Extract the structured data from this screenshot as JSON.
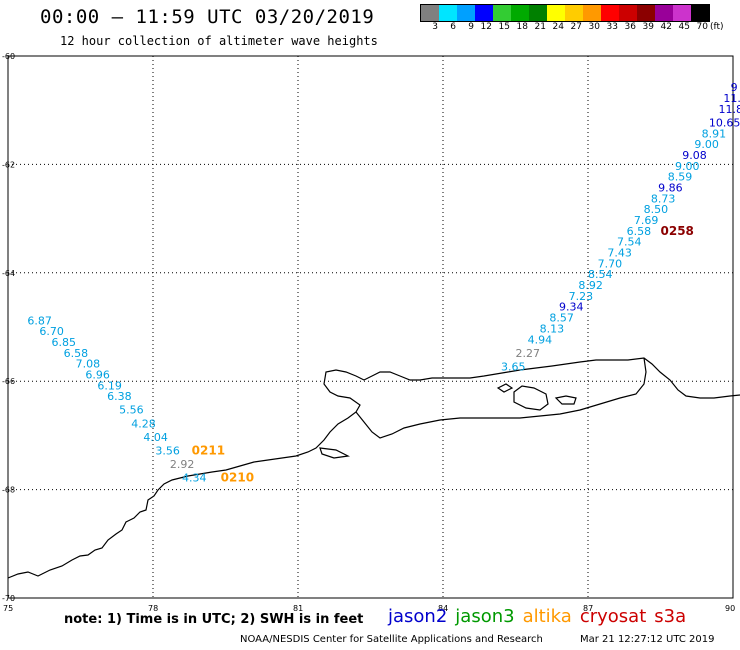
{
  "header": {
    "title": "00:00 – 11:59 UTC 03/20/2019",
    "subtitle": "12 hour collection of altimeter wave heights"
  },
  "color_scale": {
    "labels": [
      "3",
      "6",
      "9",
      "12",
      "15",
      "18",
      "21",
      "24",
      "27",
      "30",
      "33",
      "36",
      "39",
      "42",
      "45",
      "70",
      "(ft)"
    ],
    "colors": [
      "#808080",
      "#00e5ff",
      "#00a0ff",
      "#0000ff",
      "#33cc33",
      "#00aa00",
      "#008000",
      "#ffff00",
      "#ffcc00",
      "#ff9900",
      "#ff0000",
      "#cc0000",
      "#8b0000",
      "#990099",
      "#cc33cc",
      "#000000"
    ]
  },
  "map": {
    "lon_range": [
      75,
      90
    ],
    "lat_range": [
      -60,
      -70
    ],
    "x_ticks": [
      "75",
      "78",
      "81",
      "84",
      "87",
      "90"
    ],
    "y_ticks": [
      "-60",
      "-62",
      "-64",
      "-66",
      "-68",
      "-70"
    ],
    "observations": [
      {
        "lon": 89.95,
        "lat": -60.65,
        "value": "9",
        "color": "#0000cc"
      },
      {
        "lon": 89.8,
        "lat": -60.85,
        "value": "11.",
        "color": "#0000cc"
      },
      {
        "lon": 89.7,
        "lat": -61.05,
        "value": "11.8",
        "color": "#0000cc"
      },
      {
        "lon": 89.5,
        "lat": -61.3,
        "value": "10.65",
        "color": "#0000cc"
      },
      {
        "lon": 89.35,
        "lat": -61.5,
        "value": "8.91",
        "color": "#00a0e0"
      },
      {
        "lon": 89.2,
        "lat": -61.7,
        "value": "9.00",
        "color": "#00a0e0"
      },
      {
        "lon": 88.95,
        "lat": -61.9,
        "value": "9.08",
        "color": "#0000cc"
      },
      {
        "lon": 88.8,
        "lat": -62.1,
        "value": "9.00",
        "color": "#00a0e0"
      },
      {
        "lon": 88.65,
        "lat": -62.3,
        "value": "8.59",
        "color": "#00a0e0"
      },
      {
        "lon": 88.45,
        "lat": -62.5,
        "value": "9.86",
        "color": "#0000cc"
      },
      {
        "lon": 88.3,
        "lat": -62.7,
        "value": "8.73",
        "color": "#00a0e0"
      },
      {
        "lon": 88.15,
        "lat": -62.9,
        "value": "8.50",
        "color": "#00a0e0"
      },
      {
        "lon": 87.95,
        "lat": -63.1,
        "value": "7.69",
        "color": "#00a0e0"
      },
      {
        "lon": 87.8,
        "lat": -63.3,
        "value": "6.58",
        "color": "#00a0e0"
      },
      {
        "lon": 87.6,
        "lat": -63.5,
        "value": "7.54",
        "color": "#00a0e0"
      },
      {
        "lon": 87.4,
        "lat": -63.7,
        "value": "7.43",
        "color": "#00a0e0"
      },
      {
        "lon": 87.2,
        "lat": -63.9,
        "value": "7.70",
        "color": "#00a0e0"
      },
      {
        "lon": 87.0,
        "lat": -64.1,
        "value": "8.54",
        "color": "#00a0e0"
      },
      {
        "lon": 86.8,
        "lat": -64.3,
        "value": "8.92",
        "color": "#00a0e0"
      },
      {
        "lon": 86.6,
        "lat": -64.5,
        "value": "7.23",
        "color": "#00a0e0"
      },
      {
        "lon": 86.4,
        "lat": -64.7,
        "value": "9.34",
        "color": "#0000cc"
      },
      {
        "lon": 86.2,
        "lat": -64.9,
        "value": "8.57",
        "color": "#00a0e0"
      },
      {
        "lon": 86.0,
        "lat": -65.1,
        "value": "8.13",
        "color": "#00a0e0"
      },
      {
        "lon": 85.75,
        "lat": -65.3,
        "value": "4.94",
        "color": "#00a0e0"
      },
      {
        "lon": 85.5,
        "lat": -65.55,
        "value": "2.27",
        "color": "#808080"
      },
      {
        "lon": 85.2,
        "lat": -65.8,
        "value": "3.65",
        "color": "#00a0e0"
      },
      {
        "lon": 75.4,
        "lat": -64.95,
        "value": "6.87",
        "color": "#00a0e0"
      },
      {
        "lon": 75.65,
        "lat": -65.15,
        "value": "6.70",
        "color": "#00a0e0"
      },
      {
        "lon": 75.9,
        "lat": -65.35,
        "value": "6.85",
        "color": "#00a0e0"
      },
      {
        "lon": 76.15,
        "lat": -65.55,
        "value": "6.58",
        "color": "#00a0e0"
      },
      {
        "lon": 76.4,
        "lat": -65.75,
        "value": "7.08",
        "color": "#00a0e0"
      },
      {
        "lon": 76.6,
        "lat": -65.95,
        "value": "6.96",
        "color": "#00a0e0"
      },
      {
        "lon": 76.85,
        "lat": -66.15,
        "value": "6.19",
        "color": "#00a0e0"
      },
      {
        "lon": 77.05,
        "lat": -66.35,
        "value": "6.38",
        "color": "#00a0e0"
      },
      {
        "lon": 77.3,
        "lat": -66.6,
        "value": "5.56",
        "color": "#00a0e0"
      },
      {
        "lon": 77.55,
        "lat": -66.85,
        "value": "4.28",
        "color": "#00a0e0"
      },
      {
        "lon": 77.8,
        "lat": -67.1,
        "value": "4.04",
        "color": "#00a0e0"
      },
      {
        "lon": 78.05,
        "lat": -67.35,
        "value": "3.56",
        "color": "#00a0e0"
      },
      {
        "lon": 78.35,
        "lat": -67.6,
        "value": "2.92",
        "color": "#808080"
      },
      {
        "lon": 78.6,
        "lat": -67.85,
        "value": "4.34",
        "color": "#00a0e0"
      }
    ],
    "pass_times": [
      {
        "lon": 78.8,
        "lat": -67.35,
        "text": "0211",
        "color": "#ff9900"
      },
      {
        "lon": 79.4,
        "lat": -67.85,
        "text": "0210",
        "color": "#ff9900"
      },
      {
        "lon": 88.5,
        "lat": -63.3,
        "text": "0258",
        "color": "#8b0000"
      }
    ]
  },
  "footer": {
    "note": "note: 1) Time is in UTC; 2) SWH is in feet",
    "missions": [
      {
        "name": "jason2",
        "color": "#0000cc"
      },
      {
        "name": "jason3",
        "color": "#009900"
      },
      {
        "name": "altika",
        "color": "#ff9900"
      },
      {
        "name": "cryosat",
        "color": "#cc0000"
      },
      {
        "name": "s3a",
        "color": "#cc0000"
      }
    ],
    "credit": "NOAA/NESDIS Center for Satellite Applications and Research",
    "timestamp": "Mar 21 12:27:12 UTC 2019"
  }
}
